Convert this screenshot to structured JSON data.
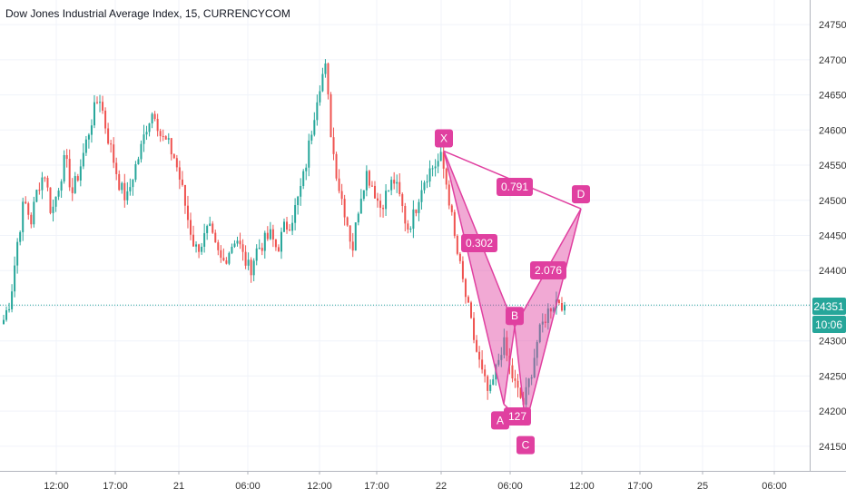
{
  "title": "Dow Jones Industrial Average Index, 15, CURRENCYCOM",
  "price_tag": {
    "value": "24351",
    "time": "10:06"
  },
  "colors": {
    "up": "#26a69a",
    "down": "#ef5350",
    "pattern": "#e040a0",
    "price_line": "#26a69a"
  },
  "chart_data": {
    "type": "candlestick",
    "title": "Dow Jones Industrial Average Index, 15, CURRENCYCOM",
    "y_ticks": [
      24150,
      24200,
      24250,
      24300,
      24350,
      24400,
      24450,
      24500,
      24550,
      24600,
      24650,
      24700,
      24750
    ],
    "ylim": [
      24115,
      24785
    ],
    "x_ticks": [
      "12:00",
      "17:00",
      "21",
      "06:00",
      "12:00",
      "17:00",
      "22",
      "06:00",
      "12:00",
      "17:00",
      "25",
      "06:00"
    ],
    "close_series": [
      24330,
      24360,
      24440,
      24500,
      24470,
      24520,
      24540,
      24480,
      24520,
      24560,
      24510,
      24540,
      24580,
      24620,
      24650,
      24600,
      24560,
      24520,
      24500,
      24540,
      24570,
      24610,
      24630,
      24590,
      24580,
      24560,
      24520,
      24470,
      24430,
      24440,
      24460,
      24430,
      24410,
      24430,
      24450,
      24420,
      24400,
      24430,
      24440,
      24450,
      24430,
      24460,
      24470,
      24500,
      24540,
      24600,
      24660,
      24690,
      24580,
      24520,
      24480,
      24430,
      24500,
      24540,
      24520,
      24490,
      24510,
      24530,
      24500,
      24460,
      24480,
      24520,
      24540,
      24550,
      24560,
      24510,
      24440,
      24390,
      24340,
      24290,
      24250,
      24220,
      24260,
      24300,
      24260,
      24230,
      24210,
      24250,
      24300,
      24330,
      24350,
      24360,
      24351
    ],
    "harmonic_pattern": {
      "points": [
        {
          "name": "X",
          "value": 24570
        },
        {
          "name": "A",
          "value": 24210
        },
        {
          "name": "B",
          "value": 24320
        },
        {
          "name": "C",
          "value": 24180
        },
        {
          "name": "D",
          "value": 24488
        }
      ],
      "ratios": [
        "0.791",
        "0.302",
        "2.076",
        "127"
      ]
    },
    "last_price": 24351
  }
}
